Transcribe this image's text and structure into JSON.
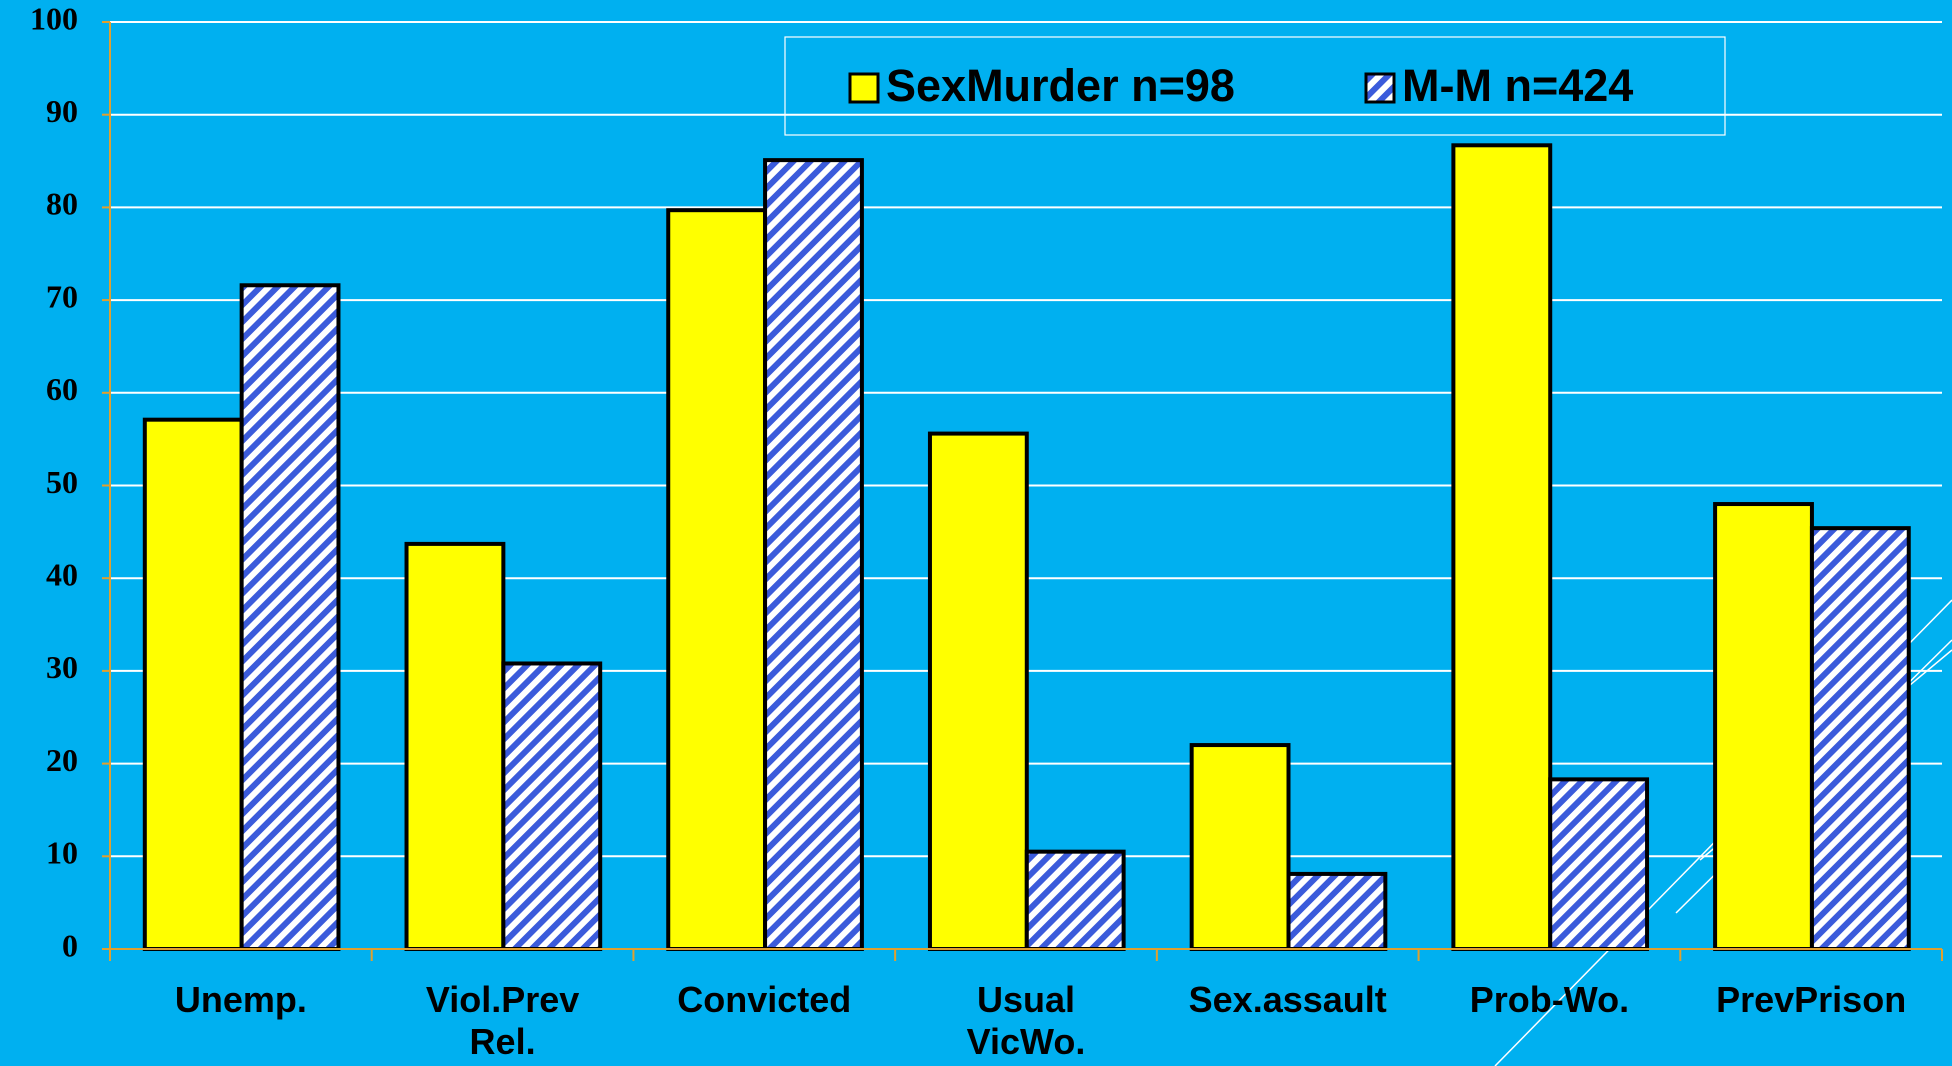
{
  "chart_data": {
    "type": "bar",
    "categories": [
      "Unemp.",
      "Viol.Prev\nRel.",
      "Convicted",
      "Usual\nVicWo.",
      "Sex.assault",
      "Prob-Wo.",
      "PrevPrison"
    ],
    "series": [
      {
        "name": "SexMurder n=98",
        "color": "#ffff00",
        "values": [
          57.1,
          43.7,
          79.7,
          55.6,
          22.0,
          86.7,
          48.0
        ]
      },
      {
        "name": "M-M n=424",
        "color": "#3b5bdb",
        "hatch": true,
        "values": [
          71.6,
          30.8,
          85.1,
          10.5,
          8.1,
          18.3,
          45.4
        ]
      }
    ],
    "ylim": [
      0,
      100
    ],
    "yticks": [
      0,
      10,
      20,
      30,
      40,
      50,
      60,
      70,
      80,
      90,
      100
    ],
    "grid": true
  }
}
